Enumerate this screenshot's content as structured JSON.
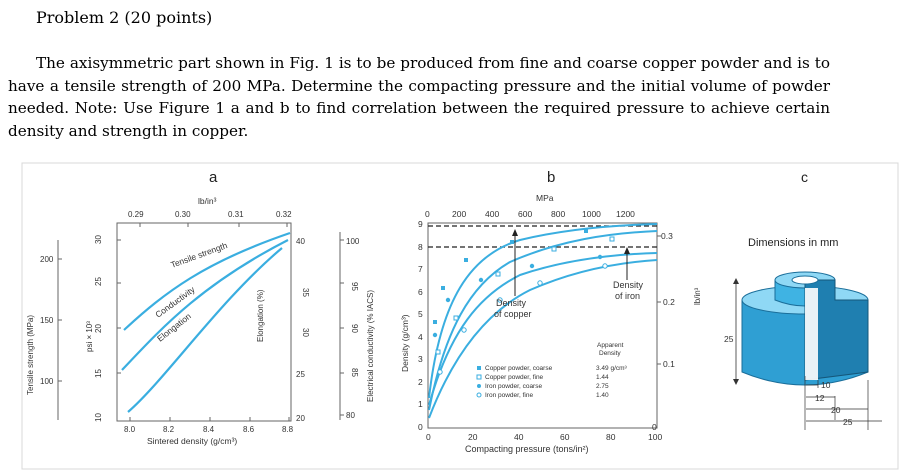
{
  "problem_title": "Problem 2 (20 points)",
  "problem_text": "The axisymmetric part shown in Fig. 1 is to be produced from fine and coarse copper powder and is to have a tensile strength of 200 MPa. Determine the compacting pressure and the initial volume of powder needed. Note: Use Figure 1 a and b to find correlation between the required pressure to achieve certain density and strength in copper.",
  "panel_a": {
    "letter": "a",
    "top_unit": "lb/in³",
    "top_ticks": [
      "0.29",
      "0.30",
      "0.31",
      "0.32"
    ],
    "x_label": "Sintered density (g/cm³)",
    "x_ticks": [
      "8.0",
      "8.2",
      "8.4",
      "8.6",
      "8.8"
    ],
    "y_far_label": "Tensile strength (MPa)",
    "y_far_ticks": [
      "200",
      "150",
      "100"
    ],
    "y_psi_label": "psi × 10³",
    "y_psi_ticks": [
      "30",
      "25",
      "20",
      "15",
      "10"
    ],
    "y_elong_label": "Elongation (%)",
    "y_elong_ticks": [
      "40",
      "35",
      "30",
      "25",
      "20"
    ],
    "y_cond_label": "Electrical conductivity (% IACS)",
    "y_cond_ticks": [
      "100",
      "95",
      "90",
      "85",
      "80"
    ],
    "curve_labels": [
      "Tensile strength",
      "Conductivity",
      "Elongation"
    ]
  },
  "panel_b": {
    "letter": "b",
    "top_unit": "MPa",
    "top_ticks": [
      "0",
      "200",
      "400",
      "600",
      "800",
      "1000",
      "1200"
    ],
    "x_label": "Compacting pressure (tons/in²)",
    "x_ticks": [
      "0",
      "20",
      "40",
      "60",
      "80",
      "100"
    ],
    "y_label": "Density (g/cm³)",
    "y_ticks": [
      "9",
      "8",
      "7",
      "6",
      "5",
      "4",
      "3",
      "2",
      "1",
      "0"
    ],
    "right_label": "lb/in³",
    "right_ticks": [
      "0.3",
      "0.2",
      "0.1",
      "0"
    ],
    "annot_copper": [
      "Density",
      "of copper"
    ],
    "annot_iron": [
      "Density",
      "of iron"
    ],
    "legend_header": [
      "Apparent",
      "Density"
    ],
    "legend": [
      {
        "name": "Copper powder, coarse",
        "value": "3.49 g/cm³"
      },
      {
        "name": "Copper powder, fine",
        "value": "1.44"
      },
      {
        "name": "Iron powder, coarse",
        "value": "2.75"
      },
      {
        "name": "Iron powder, fine",
        "value": "1.40"
      }
    ]
  },
  "panel_c": {
    "letter": "c",
    "caption": "Dimensions in mm",
    "dim_height": "25",
    "dim_inner": "10",
    "dim_mid": "12",
    "dim_mid2": "20",
    "dim_outer": "25"
  },
  "colors": {
    "curve": "#3aaee0",
    "part_face": "#3fb3e3",
    "part_dark": "#1f7fb0",
    "part_top": "#8fd8f5"
  }
}
